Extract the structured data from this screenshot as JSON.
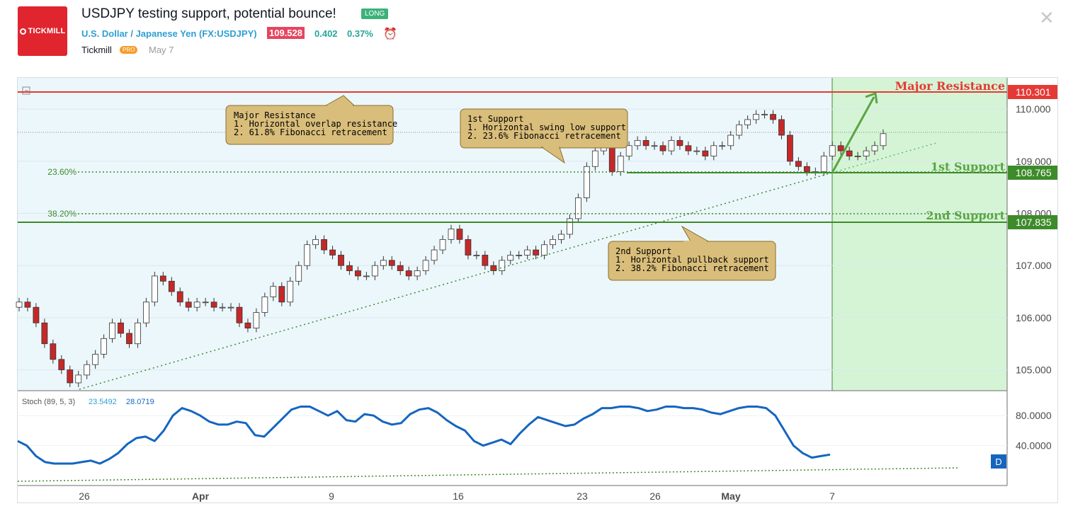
{
  "header": {
    "logo_text": "TICKMILL",
    "title": "USDJPY testing support, potential bounce!",
    "badge": "LONG",
    "symbol_name": "U.S. Dollar / Japanese Yen",
    "symbol_code": "(FX:USDJPY)",
    "last_price": "109.528",
    "change": "0.402",
    "change_pct": "0.37%",
    "author": "Tickmill",
    "author_badge": "PRO",
    "published": "May 7"
  },
  "colors": {
    "resistance": "#e53935",
    "support": "#3d8b2a",
    "up_candle": "#ffffff",
    "down_candle": "#c62828",
    "projection_fill": "#ccf2c4",
    "chart_bg": "#ecf7fc",
    "stoch_line": "#1565c0",
    "callout_fill": "#d9bd7a"
  },
  "chart_data": [
    {
      "type": "candlestick",
      "ylim": [
        104.6,
        110.6
      ],
      "x_ticks": [
        "26",
        "Apr",
        "9",
        "16",
        "23",
        "26",
        "May",
        "7"
      ],
      "y_ticks": [
        "110.000",
        "109.000",
        "108.000",
        "107.000",
        "106.000",
        "105.000"
      ],
      "close_series": [
        106.3,
        106.2,
        105.9,
        105.5,
        105.2,
        105.0,
        104.75,
        104.9,
        105.1,
        105.3,
        105.6,
        105.9,
        105.7,
        105.5,
        105.9,
        106.3,
        106.8,
        106.7,
        106.5,
        106.3,
        106.2,
        106.3,
        106.3,
        106.2,
        106.2,
        106.2,
        105.9,
        105.8,
        106.1,
        106.4,
        106.6,
        106.3,
        106.7,
        107.0,
        107.4,
        107.5,
        107.3,
        107.2,
        107.0,
        106.9,
        106.8,
        106.8,
        107.0,
        107.1,
        107.0,
        106.9,
        106.8,
        106.9,
        107.1,
        107.3,
        107.5,
        107.7,
        107.5,
        107.2,
        107.2,
        107.0,
        106.9,
        107.1,
        107.2,
        107.2,
        107.3,
        107.2,
        107.4,
        107.5,
        107.6,
        107.9,
        108.3,
        108.9,
        109.2,
        109.3,
        108.8,
        109.1,
        109.3,
        109.4,
        109.3,
        109.3,
        109.2,
        109.4,
        109.3,
        109.2,
        109.2,
        109.1,
        109.3,
        109.3,
        109.5,
        109.7,
        109.8,
        109.9,
        109.9,
        109.8,
        109.5,
        109.0,
        108.9,
        108.8,
        108.8,
        109.1,
        109.3,
        109.2,
        109.1,
        109.1,
        109.2,
        109.3,
        109.53
      ],
      "levels": [
        {
          "label": "Major Resistance",
          "value": "110.301"
        },
        {
          "label": "1st Support",
          "value": "108.765"
        },
        {
          "label": "2nd Support",
          "value": "107.835"
        }
      ],
      "fib_labels": [
        "23.60%",
        "38.20%"
      ],
      "annotations": [
        {
          "title": "Major Resistance",
          "lines": [
            "1. Horizontal overlap resistance",
            "2. 61.8% Fibonacci retracement"
          ]
        },
        {
          "title": "1st Support",
          "lines": [
            "1. Horizontal swing low support",
            "2. 23.6% Fibonacci retracement"
          ]
        },
        {
          "title": "2nd Support",
          "lines": [
            "1. Horizontal pullback support",
            "2. 38.2% Fibonacci retracement"
          ]
        }
      ]
    },
    {
      "type": "line",
      "title": "Stoch (89, 5, 3)",
      "values_label": [
        "23.5492",
        "28.0719"
      ],
      "ylim": [
        0,
        100
      ],
      "y_ticks": [
        "80.0000",
        "40.0000"
      ],
      "series": [
        {
          "values": [
            46,
            40,
            26,
            18,
            16,
            16,
            16,
            18,
            20,
            16,
            22,
            30,
            42,
            50,
            52,
            46,
            60,
            80,
            90,
            86,
            80,
            72,
            68,
            68,
            72,
            70,
            54,
            52,
            64,
            76,
            88,
            92,
            92,
            86,
            80,
            86,
            74,
            72,
            82,
            80,
            72,
            68,
            70,
            82,
            88,
            90,
            84,
            74,
            66,
            60,
            46,
            40,
            44,
            48,
            42,
            56,
            68,
            78,
            74,
            70,
            66,
            68,
            76,
            82,
            90,
            90,
            92,
            92,
            90,
            86,
            88,
            92,
            92,
            90,
            90,
            88,
            84,
            82,
            86,
            90,
            92,
            92,
            90,
            80,
            60,
            40,
            30,
            24,
            26,
            28
          ]
        }
      ],
      "badge": "D"
    }
  ]
}
